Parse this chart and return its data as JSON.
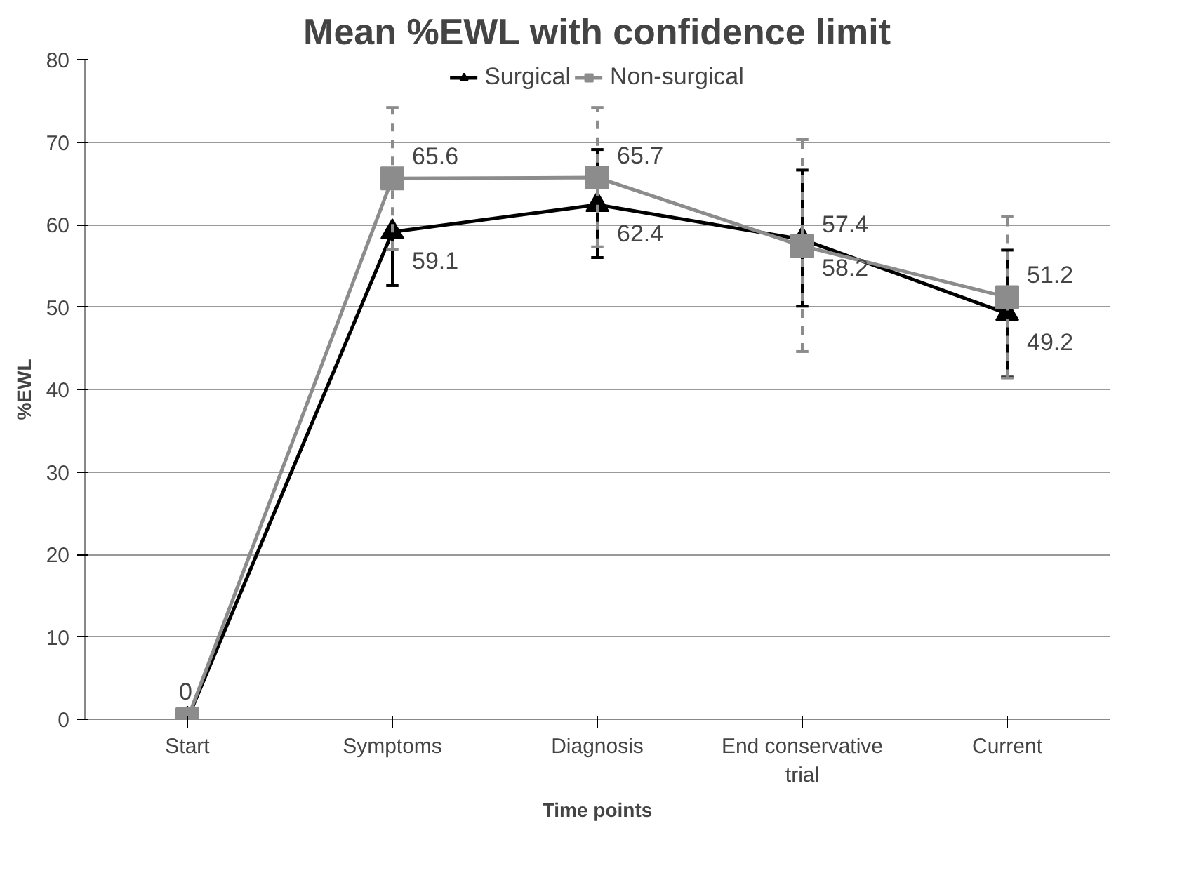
{
  "chart_data": {
    "type": "line",
    "title": "Mean %EWL with confidence limit",
    "xlabel": "Time points",
    "ylabel": "%EWL",
    "categories": [
      "Start",
      "Symptoms",
      "Diagnosis",
      "End conservative trial",
      "Current"
    ],
    "series": [
      {
        "name": "Surgical",
        "color": "#000000",
        "marker": "triangle",
        "values": [
          0,
          59.1,
          62.4,
          58.2,
          49.2
        ],
        "value_labels": [
          null,
          "59.1",
          "62.4",
          "58.2",
          "49.2"
        ],
        "errors": [
          null,
          [
            52.6,
            59.1
          ],
          [
            56.0,
            69.1
          ],
          [
            50.1,
            66.6
          ],
          [
            41.5,
            56.9
          ]
        ]
      },
      {
        "name": "Non-surgical",
        "color": "#8c8c8c",
        "marker": "square",
        "values": [
          0,
          65.6,
          65.7,
          57.4,
          51.2
        ],
        "value_labels": [
          "0",
          "65.6",
          "65.7",
          "57.4",
          "51.2"
        ],
        "errors": [
          null,
          [
            57.0,
            74.2
          ],
          [
            57.3,
            74.2
          ],
          [
            44.6,
            70.3
          ],
          [
            41.4,
            61.0
          ]
        ]
      }
    ],
    "ylim": [
      0,
      80
    ],
    "yticks": [
      0,
      10,
      20,
      30,
      40,
      50,
      60,
      70,
      80
    ],
    "grid": "y",
    "legend": "top"
  }
}
